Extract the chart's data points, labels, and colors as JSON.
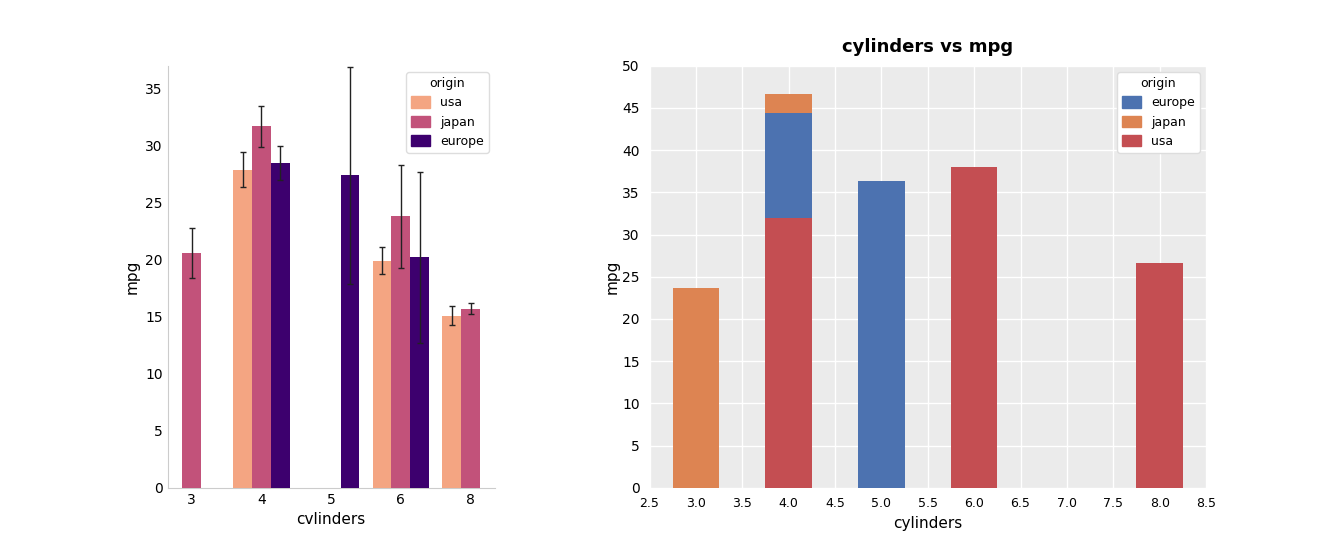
{
  "chart1": {
    "xlabel": "cvlinders",
    "ylabel": "mpg",
    "cylinders": [
      3,
      4,
      5,
      6,
      8
    ],
    "origins": [
      "usa",
      "japan",
      "europe"
    ],
    "colors": {
      "usa": "#F4A582",
      "japan": "#C2527A",
      "europe": "#3D006E"
    },
    "means": {
      "3": {
        "usa": null,
        "japan": 20.55,
        "europe": null
      },
      "4": {
        "usa": 27.9,
        "japan": 31.7,
        "europe": 28.5
      },
      "5": {
        "usa": null,
        "japan": null,
        "europe": 27.4
      },
      "6": {
        "usa": 19.9,
        "japan": 23.8,
        "europe": 20.2
      },
      "8": {
        "usa": 15.1,
        "japan": 15.7,
        "europe": null
      }
    },
    "errors": {
      "3": {
        "usa": null,
        "japan": 2.2,
        "europe": null
      },
      "4": {
        "usa": 1.5,
        "japan": 1.8,
        "europe": 1.5
      },
      "5": {
        "usa": null,
        "japan": null,
        "europe": 9.5
      },
      "6": {
        "usa": 1.2,
        "japan": 4.5,
        "europe": 7.5
      },
      "8": {
        "usa": 0.8,
        "japan": 0.5,
        "europe": null
      }
    },
    "bar_width": 0.27,
    "offsets": {
      "usa": -0.27,
      "japan": 0.0,
      "europe": 0.27
    },
    "ylim": [
      0,
      37
    ],
    "yticks": [
      0,
      5,
      10,
      15,
      20,
      25,
      30,
      35
    ]
  },
  "chart2": {
    "title": "cylinders vs mpg",
    "xlabel": "cylinders",
    "ylabel": "mpg",
    "colors": {
      "europe": "#4C72B0",
      "japan": "#DD8452",
      "usa": "#C44E52"
    },
    "bars": {
      "3": {
        "usa": 0,
        "europe": 0,
        "japan": 23.7
      },
      "4": {
        "usa": 32.0,
        "europe": 12.4,
        "japan": 2.2
      },
      "5": {
        "usa": 0,
        "europe": 36.4,
        "japan": 0
      },
      "6": {
        "usa": 38.0,
        "europe": 0,
        "japan": 0
      },
      "8": {
        "usa": 26.6,
        "europe": 0,
        "japan": 0
      }
    },
    "xlim": [
      2.5,
      8.5
    ],
    "ylim": [
      0,
      50
    ],
    "yticks": [
      0,
      5,
      10,
      15,
      20,
      25,
      30,
      35,
      40,
      45,
      50
    ],
    "xticks": [
      2.5,
      3.0,
      3.5,
      4.0,
      4.5,
      5.0,
      5.5,
      6.0,
      6.5,
      7.0,
      7.5,
      8.0,
      8.5
    ],
    "bar_width": 0.5
  }
}
